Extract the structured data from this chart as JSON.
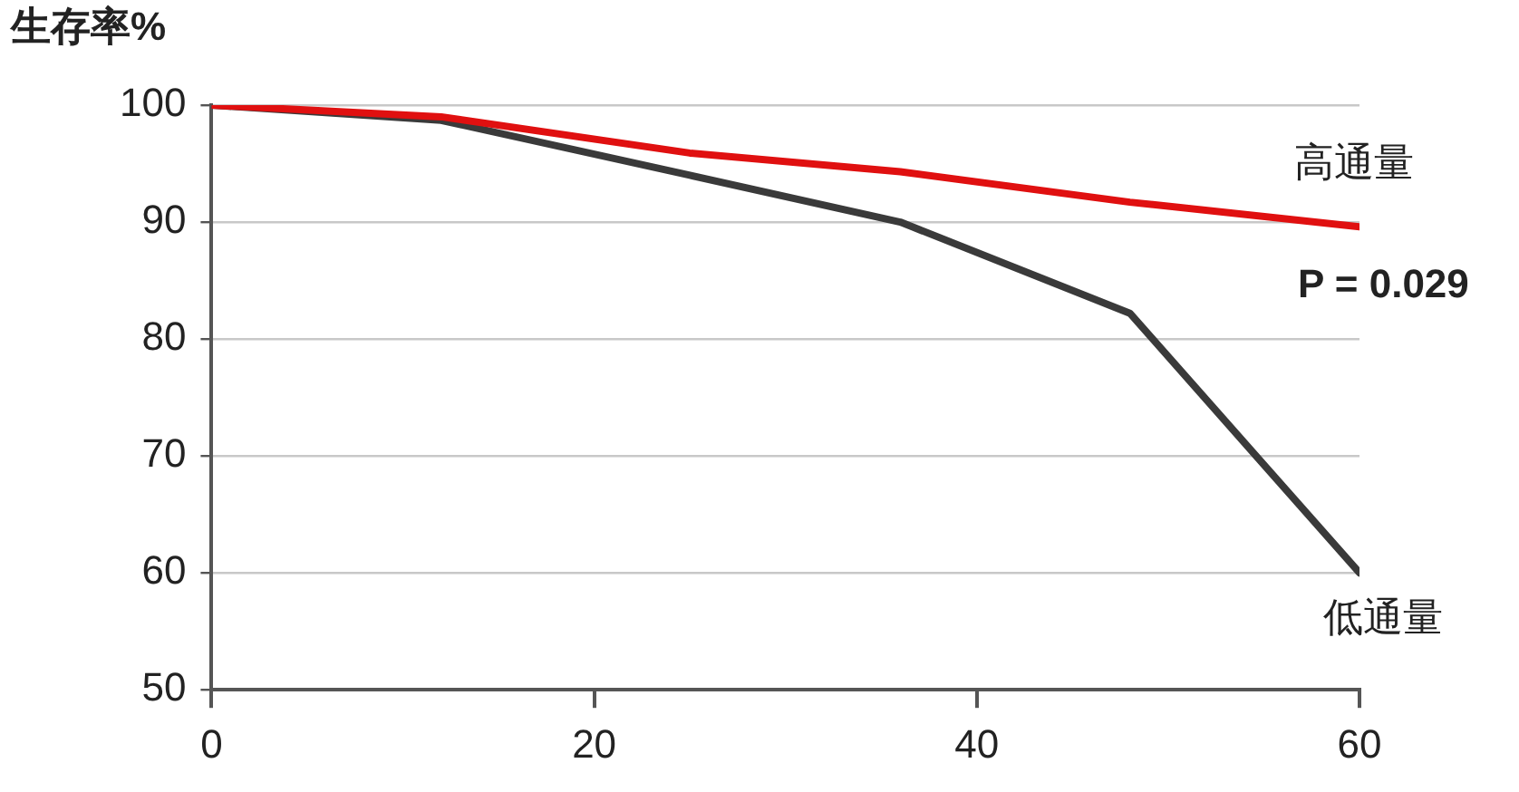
{
  "chart_data": {
    "type": "line",
    "ylabel": "生存率%",
    "annotations": [
      "P = 0.029"
    ],
    "x": [
      0,
      12,
      25,
      36,
      48,
      60
    ],
    "series": [
      {
        "name": "高通量",
        "color": "#e01010",
        "values": [
          100,
          99,
          95.9,
          94.3,
          91.7,
          89.6
        ]
      },
      {
        "name": "低通量",
        "color": "#3a3a3a",
        "values": [
          100,
          98.7,
          94,
          90,
          82.2,
          60
        ]
      }
    ],
    "xlim": [
      0,
      60
    ],
    "xticks": [
      0,
      20,
      40,
      60
    ],
    "ylim": [
      50,
      100
    ],
    "yticks": [
      50,
      60,
      70,
      80,
      90,
      100
    ],
    "grid": "y",
    "legend": false,
    "marker": "none",
    "line_style": "solid"
  }
}
